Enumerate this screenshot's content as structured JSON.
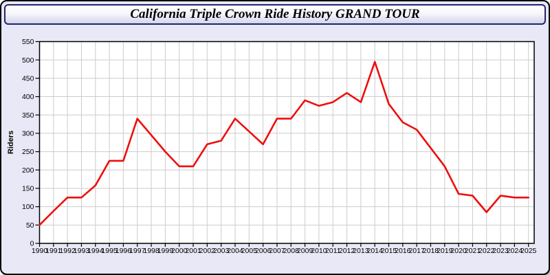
{
  "window": {
    "title": "California Triple Crown Ride History GRAND TOUR"
  },
  "chart_data": {
    "type": "line",
    "title": "California Triple Crown Ride History GRAND TOUR",
    "xlabel": "",
    "ylabel": "Riders",
    "x": [
      1990,
      1991,
      1992,
      1993,
      1994,
      1995,
      1996,
      1997,
      1998,
      1999,
      2000,
      2001,
      2002,
      2003,
      2004,
      2005,
      2006,
      2007,
      2008,
      2009,
      2010,
      2011,
      2012,
      2013,
      2014,
      2015,
      2016,
      2017,
      2018,
      2019,
      2020,
      2021,
      2022,
      2023,
      2024,
      2025
    ],
    "series": [
      {
        "name": "Riders",
        "values": [
          50,
          88,
          125,
          125,
          158,
          225,
          225,
          340,
          295,
          250,
          210,
          210,
          270,
          280,
          340,
          305,
          270,
          340,
          340,
          390,
          375,
          385,
          410,
          385,
          495,
          380,
          330,
          310,
          260,
          210,
          135,
          130,
          85,
          130,
          125,
          125
        ]
      }
    ],
    "ylim": [
      0,
      550
    ],
    "ytick_step": 50,
    "grid": true,
    "legend_position": "none",
    "theme": {
      "line_color": "#ee0d0d",
      "plot_bg": "#ffffff",
      "grid_color": "#cccccc",
      "frame_color": "#000000",
      "text_color": "#000000",
      "window_bg": "#e8e8f6",
      "titlebar_border": "#23236d",
      "titlebar_gradient_top": "#ffffff",
      "titlebar_gradient_bottom": "#d5d5ee"
    }
  }
}
